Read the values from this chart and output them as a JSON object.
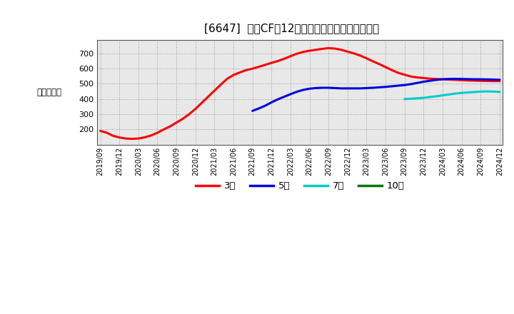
{
  "title": "[6647]  営業CFの12か月移動合計の平均値の推移",
  "ylabel": "（百万円）",
  "background_color": "#ffffff",
  "grid_color": "#aaaaaa",
  "plot_bg_color": "#e8e8e8",
  "ylim": [
    100,
    790
  ],
  "yticks": [
    200,
    300,
    400,
    500,
    600,
    700
  ],
  "legend_labels": [
    "3年",
    "5年",
    "7年",
    "10年"
  ],
  "legend_colors": [
    "#ff0000",
    "#0000dd",
    "#00cccc",
    "#007700"
  ],
  "series": {
    "3year": {
      "color": "#ff0000",
      "linewidth": 2.2,
      "x": [
        0,
        1,
        2,
        3,
        4,
        5,
        6,
        7,
        8,
        9,
        10,
        11,
        12,
        13,
        14,
        15,
        16,
        17,
        18,
        19,
        20,
        21,
        22,
        23,
        24,
        25,
        26,
        27,
        28,
        29,
        30,
        31,
        32,
        33,
        34,
        35,
        36,
        37,
        38,
        39,
        40,
        41,
        42,
        43,
        44,
        45,
        46,
        47,
        48,
        49,
        50,
        51,
        52,
        53,
        54,
        55,
        56,
        57,
        58,
        59,
        60,
        61,
        62,
        63
      ],
      "y": [
        190,
        178,
        158,
        147,
        140,
        138,
        140,
        148,
        160,
        178,
        200,
        220,
        245,
        270,
        300,
        335,
        375,
        415,
        455,
        495,
        533,
        558,
        575,
        590,
        600,
        612,
        625,
        638,
        650,
        665,
        682,
        698,
        710,
        718,
        724,
        730,
        735,
        732,
        724,
        712,
        700,
        686,
        668,
        648,
        630,
        610,
        590,
        572,
        560,
        548,
        542,
        538,
        534,
        532,
        530,
        528,
        526,
        524,
        522,
        521,
        520,
        519,
        518,
        518
      ]
    },
    "5year": {
      "color": "#0000dd",
      "linewidth": 2.2,
      "x": [
        24,
        25,
        26,
        27,
        28,
        29,
        30,
        31,
        32,
        33,
        34,
        35,
        36,
        37,
        38,
        39,
        40,
        41,
        42,
        43,
        44,
        45,
        46,
        47,
        48,
        49,
        50,
        51,
        52,
        53,
        54,
        55,
        56,
        57,
        58,
        59,
        60,
        61,
        62,
        63
      ],
      "y": [
        322,
        338,
        356,
        378,
        398,
        415,
        432,
        448,
        460,
        468,
        472,
        474,
        474,
        472,
        470,
        470,
        470,
        470,
        472,
        474,
        477,
        480,
        484,
        488,
        492,
        498,
        506,
        514,
        520,
        526,
        530,
        532,
        533,
        532,
        531,
        530,
        530,
        529,
        528,
        527
      ]
    },
    "7year": {
      "color": "#00cccc",
      "linewidth": 2.2,
      "x": [
        48,
        49,
        50,
        51,
        52,
        53,
        54,
        55,
        56,
        57,
        58,
        59,
        60,
        61,
        62,
        63
      ],
      "y": [
        400,
        402,
        405,
        408,
        413,
        418,
        424,
        430,
        436,
        440,
        443,
        446,
        449,
        450,
        449,
        447
      ]
    },
    "10year": {
      "color": "#007700",
      "linewidth": 2.2,
      "x": [],
      "y": []
    }
  },
  "xtick_labels": [
    "2019/09",
    "2019/12",
    "2020/03",
    "2020/06",
    "2020/09",
    "2020/12",
    "2021/03",
    "2021/06",
    "2021/09",
    "2021/12",
    "2022/03",
    "2022/06",
    "2022/09",
    "2022/12",
    "2023/03",
    "2023/06",
    "2023/09",
    "2023/12",
    "2024/03",
    "2024/06",
    "2024/09",
    "2024/12"
  ],
  "xtick_positions": [
    0,
    3,
    6,
    9,
    12,
    15,
    18,
    21,
    24,
    27,
    30,
    33,
    36,
    39,
    42,
    45,
    48,
    51,
    54,
    57,
    60,
    63
  ]
}
